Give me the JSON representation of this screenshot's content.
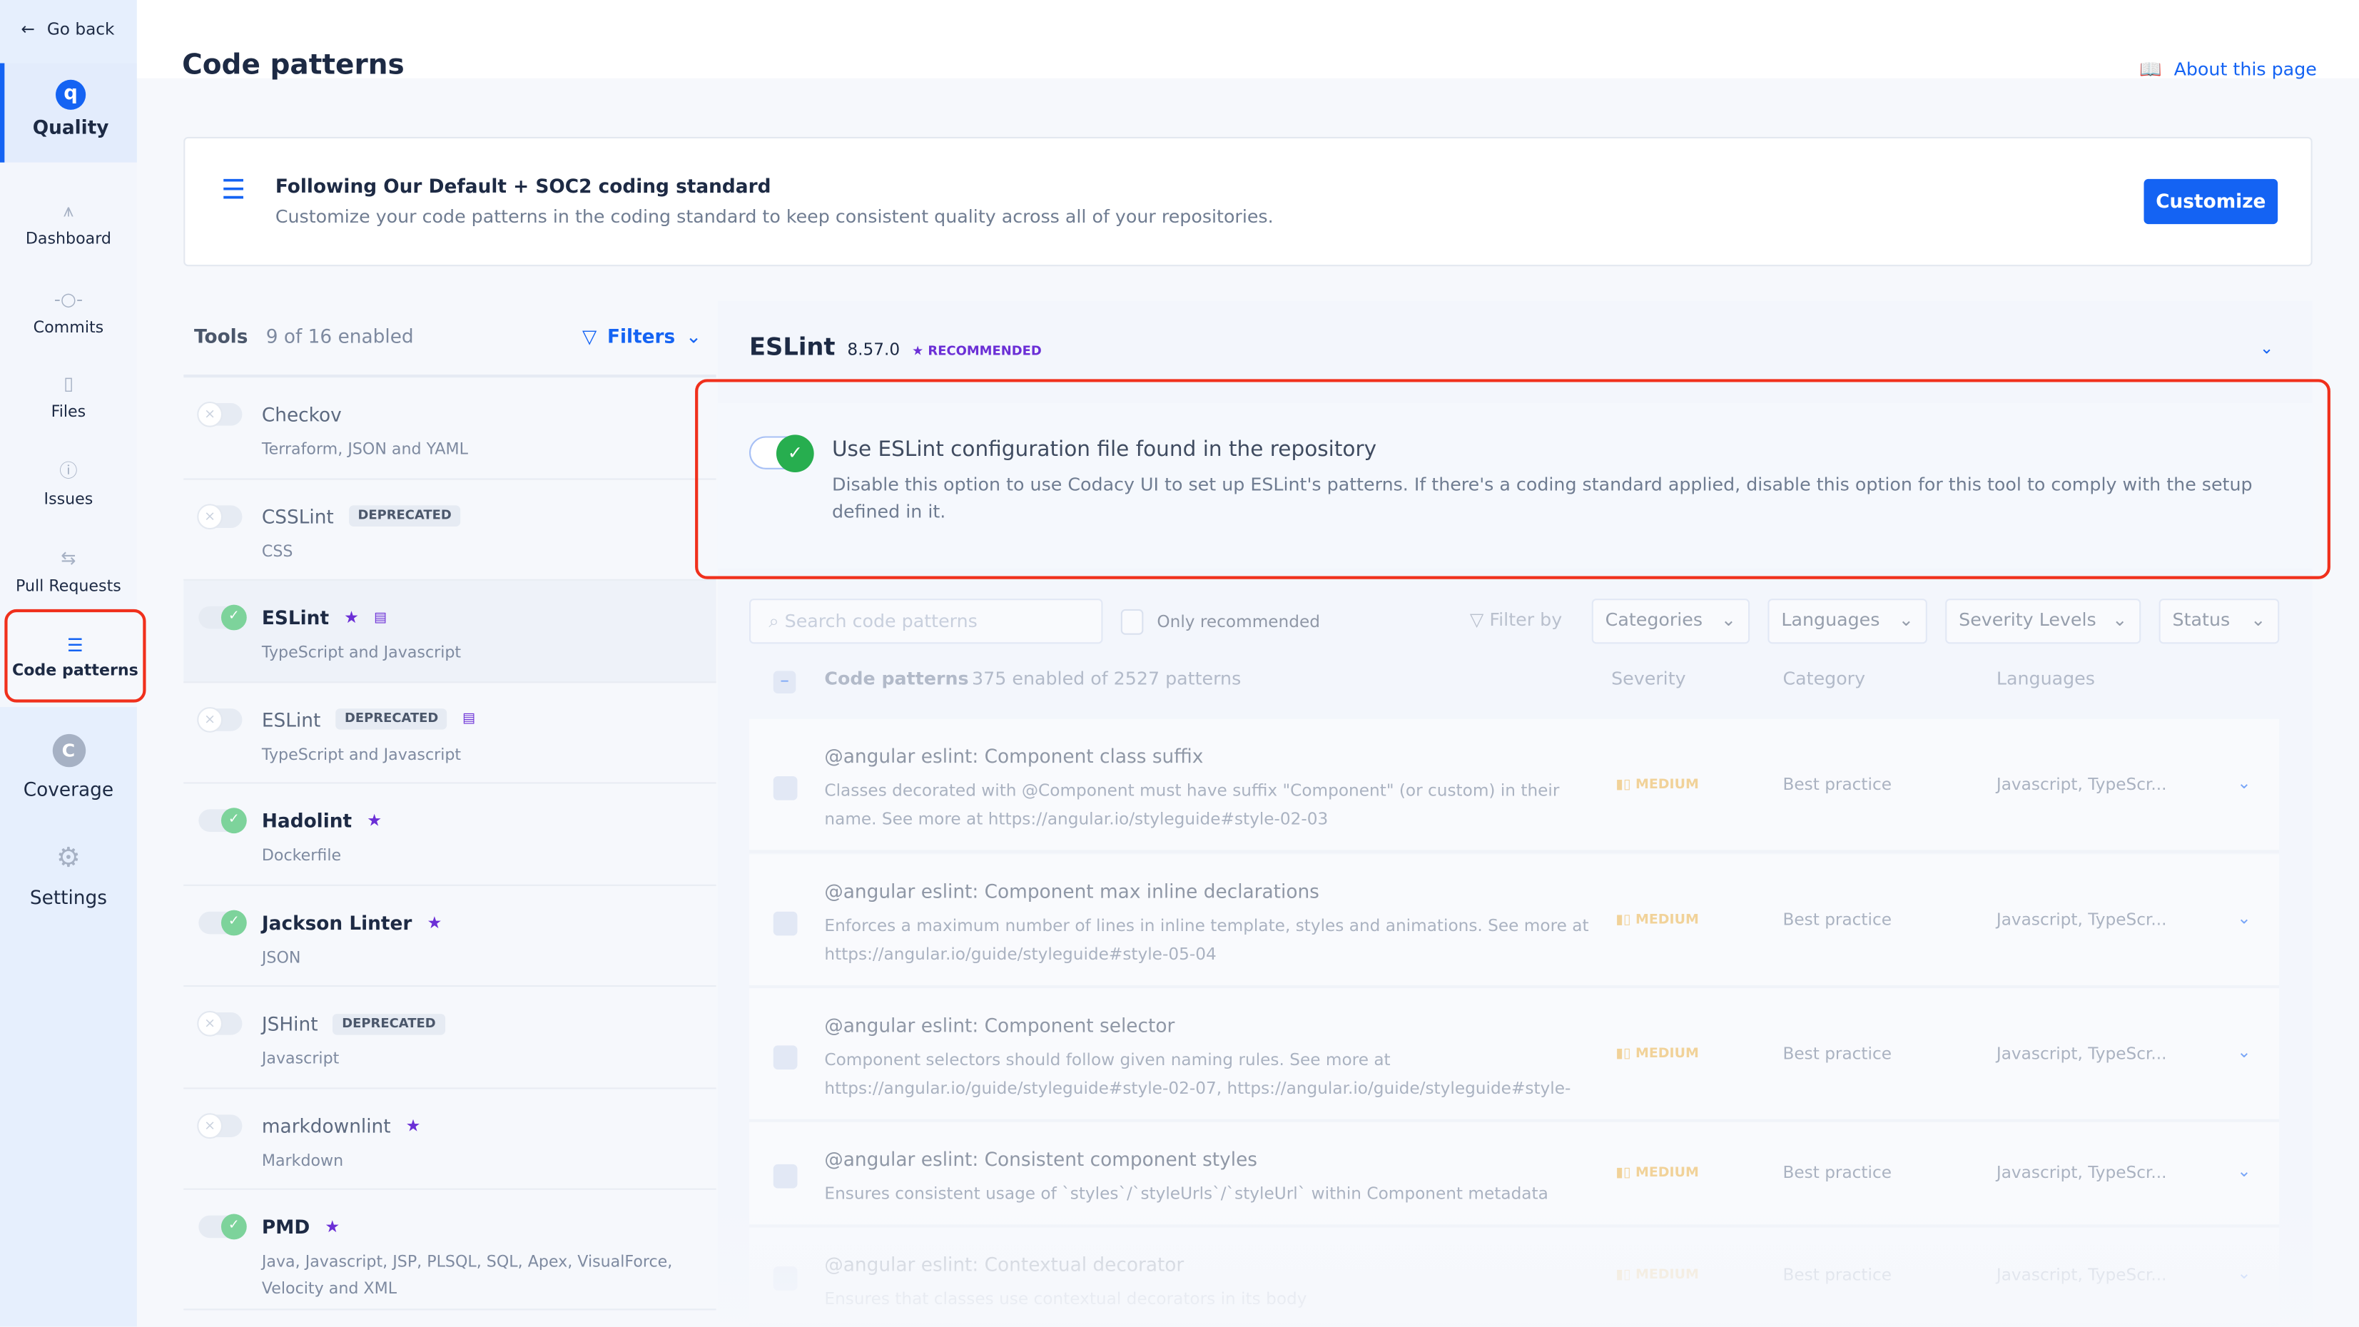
{
  "sidebar": {
    "go_back": "Go back",
    "section": "Quality",
    "section_logo": "q",
    "items": [
      {
        "label": "Dashboard",
        "icon": "chart-icon"
      },
      {
        "label": "Commits",
        "icon": "commit-icon"
      },
      {
        "label": "Files",
        "icon": "file-icon"
      },
      {
        "label": "Issues",
        "icon": "issue-icon"
      },
      {
        "label": "Pull Requests",
        "icon": "pull-request-icon"
      },
      {
        "label": "Code patterns",
        "icon": "list-icon",
        "active": true
      }
    ],
    "coverage": {
      "label": "Coverage",
      "logo": "C"
    },
    "settings": {
      "label": "Settings"
    }
  },
  "page": {
    "title": "Code patterns",
    "about": "About this page"
  },
  "banner": {
    "title": "Following Our Default + SOC2 coding standard",
    "subtitle": "Customize your code patterns in the coding standard to keep consistent quality across all of your repositories.",
    "button": "Customize"
  },
  "tools": {
    "label": "Tools",
    "count": "9 of 16 enabled",
    "filters": "Filters",
    "items": [
      {
        "name": "Checkov",
        "desc": "Terraform, JSON and YAML",
        "enabled": false
      },
      {
        "name": "CSSLint",
        "desc": "CSS",
        "enabled": false,
        "badge": "DEPRECATED"
      },
      {
        "name": "ESLint",
        "desc": "TypeScript and Javascript",
        "enabled": true,
        "recommended": true,
        "config": true,
        "selected": true
      },
      {
        "name": "ESLint",
        "desc": "TypeScript and Javascript",
        "enabled": false,
        "badge": "DEPRECATED",
        "config": true
      },
      {
        "name": "Hadolint",
        "desc": "Dockerfile",
        "enabled": true,
        "recommended": true
      },
      {
        "name": "Jackson Linter",
        "desc": "JSON",
        "enabled": true,
        "recommended": true
      },
      {
        "name": "JSHint",
        "desc": "Javascript",
        "enabled": false,
        "badge": "DEPRECATED"
      },
      {
        "name": "markdownlint",
        "desc": "Markdown",
        "enabled": false,
        "recommended": true
      },
      {
        "name": "PMD",
        "desc": "Java, Javascript, JSP, PLSQL, SQL, Apex, VisualForce, Velocity and XML",
        "enabled": true,
        "recommended": true
      }
    ]
  },
  "tool_detail": {
    "name": "ESLint",
    "version": "8.57.0",
    "recommended": "RECOMMENDED",
    "config": {
      "enabled": true,
      "title": "Use ESLint configuration file found in the repository",
      "desc": "Disable this option to use Codacy UI to set up ESLint's patterns. If there's a coding standard applied, disable this option for this tool to comply with the setup defined in it."
    },
    "search_placeholder": "Search code patterns",
    "only_recommended": "Only recommended",
    "filter_by": "Filter by",
    "dropdowns": [
      "Categories",
      "Languages",
      "Severity Levels",
      "Status"
    ],
    "table": {
      "title": "Code patterns",
      "count": "375 enabled of 2527 patterns",
      "severity": "Severity",
      "category": "Category",
      "languages": "Languages"
    },
    "patterns": [
      {
        "title": "@angular eslint: Component class suffix",
        "desc": "Classes decorated with @Component must have suffix \"Component\" (or custom) in their name. See more at https://angular.io/styleguide#style-02-03",
        "severity": "MEDIUM",
        "category": "Best practice",
        "languages": "Javascript, TypeScr..."
      },
      {
        "title": "@angular eslint: Component max inline declarations",
        "desc": "Enforces a maximum number of lines in inline template, styles and animations. See more at https://angular.io/guide/styleguide#style-05-04",
        "severity": "MEDIUM",
        "category": "Best practice",
        "languages": "Javascript, TypeScr..."
      },
      {
        "title": "@angular eslint: Component selector",
        "desc": "Component selectors should follow given naming rules. See more at https://angular.io/guide/styleguide#style-02-07, https://angular.io/guide/styleguide#style-05-...",
        "severity": "MEDIUM",
        "category": "Best practice",
        "languages": "Javascript, TypeScr..."
      },
      {
        "title": "@angular eslint: Consistent component styles",
        "desc": "Ensures consistent usage of `styles`/`styleUrls`/`styleUrl` within Component metadata",
        "severity": "MEDIUM",
        "category": "Best practice",
        "languages": "Javascript, TypeScr..."
      },
      {
        "title": "@angular eslint: Contextual decorator",
        "desc": "Ensures that classes use contextual decorators in its body",
        "severity": "MEDIUM",
        "category": "Best practice",
        "languages": "Javascript, TypeScr..."
      }
    ]
  },
  "colors": {
    "accent": "#1463f3",
    "recommended": "#6b2fd6",
    "medium": "#f0b54a",
    "enabled": "#27ae4f",
    "highlight": "#f0301c"
  }
}
